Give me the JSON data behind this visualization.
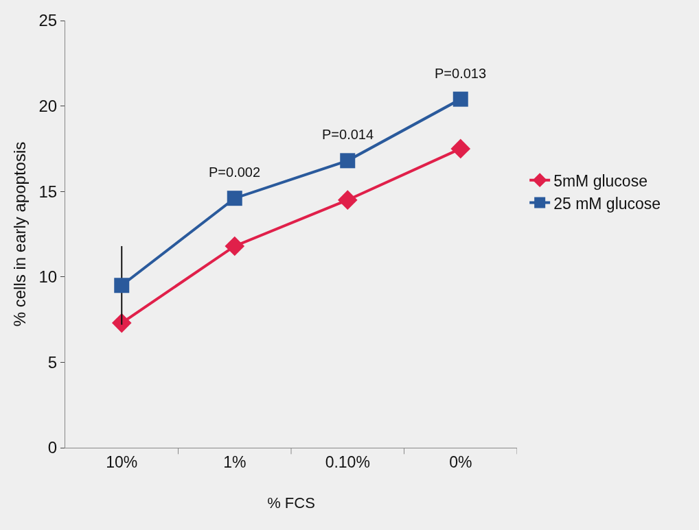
{
  "chart_data": {
    "type": "line",
    "xlabel": "% FCS",
    "ylabel": "% cells in early apoptosis",
    "categories": [
      "10%",
      "1%",
      "0.10%",
      "0%"
    ],
    "ylim": [
      0,
      25
    ],
    "yticks": [
      0,
      5,
      10,
      15,
      20,
      25
    ],
    "grid": false,
    "legend": "right",
    "line_style": "solid",
    "series": [
      {
        "name": "5mM glucose",
        "color": "#e0204a",
        "marker": "diamond",
        "values": [
          7.3,
          11.8,
          14.5,
          17.5
        ]
      },
      {
        "name": "25 mM glucose",
        "color": "#2a5a9c",
        "marker": "square",
        "values": [
          9.5,
          14.6,
          16.8,
          20.4
        ],
        "errors": [
          2.3,
          null,
          null,
          null
        ]
      }
    ],
    "annotations": [
      "P=0.002",
      "P=0.014",
      "P=0.013"
    ]
  }
}
